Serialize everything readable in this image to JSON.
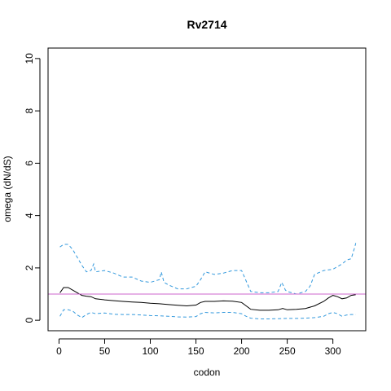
{
  "chart_data": {
    "type": "line",
    "title": "Rv2714",
    "xlabel": "codon",
    "ylabel": "omega (dN/dS)",
    "xlim": [
      -12,
      336
    ],
    "ylim": [
      -0.4,
      10.4
    ],
    "x_ticks": [
      0,
      50,
      100,
      150,
      200,
      250,
      300
    ],
    "y_ticks": [
      0,
      2,
      4,
      6,
      8,
      10
    ],
    "x_tick_labels": [
      "0",
      "50",
      "100",
      "150",
      "200",
      "250",
      "300"
    ],
    "y_tick_labels": [
      "0",
      "2",
      "4",
      "6",
      "8",
      "10"
    ],
    "grid": false,
    "legend": "none",
    "reference_line": {
      "y": 1,
      "color": "#cc66cc"
    },
    "series": [
      {
        "role": "estimate",
        "style": "solid",
        "color": "#000000",
        "x": [
          1,
          5,
          10,
          15,
          20,
          25,
          30,
          35,
          40,
          50,
          60,
          70,
          80,
          90,
          100,
          110,
          120,
          130,
          140,
          150,
          155,
          160,
          170,
          180,
          190,
          200,
          205,
          210,
          220,
          230,
          240,
          245,
          250,
          260,
          270,
          280,
          290,
          295,
          300,
          305,
          310,
          315,
          320,
          325
        ],
        "y": [
          1.05,
          1.25,
          1.25,
          1.15,
          1.05,
          0.95,
          0.92,
          0.9,
          0.82,
          0.78,
          0.75,
          0.72,
          0.7,
          0.68,
          0.65,
          0.63,
          0.6,
          0.57,
          0.55,
          0.58,
          0.68,
          0.72,
          0.72,
          0.74,
          0.73,
          0.68,
          0.55,
          0.42,
          0.38,
          0.38,
          0.4,
          0.45,
          0.4,
          0.42,
          0.45,
          0.55,
          0.72,
          0.85,
          0.95,
          0.9,
          0.82,
          0.85,
          0.95,
          0.98
        ]
      },
      {
        "role": "upper bound",
        "style": "dashed",
        "color": "#3399dd",
        "x": [
          1,
          5,
          10,
          15,
          20,
          25,
          30,
          35,
          38,
          40,
          50,
          60,
          70,
          80,
          90,
          100,
          110,
          112,
          115,
          120,
          130,
          140,
          150,
          155,
          160,
          170,
          180,
          190,
          200,
          205,
          210,
          220,
          230,
          240,
          244,
          248,
          250,
          260,
          270,
          275,
          280,
          290,
          300,
          305,
          310,
          315,
          320,
          324,
          325
        ],
        "y": [
          2.8,
          2.9,
          2.9,
          2.7,
          2.4,
          2.1,
          1.85,
          1.9,
          2.15,
          1.85,
          1.9,
          1.8,
          1.65,
          1.65,
          1.5,
          1.45,
          1.55,
          1.85,
          1.45,
          1.35,
          1.2,
          1.2,
          1.3,
          1.55,
          1.85,
          1.75,
          1.8,
          1.9,
          1.9,
          1.5,
          1.1,
          1.05,
          1.05,
          1.1,
          1.45,
          1.15,
          1.1,
          1.0,
          1.1,
          1.3,
          1.75,
          1.9,
          1.95,
          2.05,
          2.15,
          2.3,
          2.35,
          2.8,
          2.95
        ]
      },
      {
        "role": "lower bound",
        "style": "dashed",
        "color": "#3399dd",
        "x": [
          1,
          5,
          10,
          15,
          20,
          25,
          30,
          35,
          40,
          50,
          60,
          70,
          80,
          90,
          100,
          110,
          120,
          130,
          140,
          150,
          155,
          160,
          170,
          180,
          190,
          200,
          205,
          210,
          220,
          230,
          240,
          250,
          260,
          270,
          280,
          290,
          295,
          300,
          305,
          310,
          315,
          320,
          325
        ],
        "y": [
          0.15,
          0.4,
          0.4,
          0.35,
          0.2,
          0.1,
          0.22,
          0.3,
          0.25,
          0.28,
          0.23,
          0.22,
          0.22,
          0.2,
          0.18,
          0.17,
          0.15,
          0.13,
          0.12,
          0.14,
          0.25,
          0.3,
          0.28,
          0.3,
          0.3,
          0.25,
          0.15,
          0.08,
          0.05,
          0.05,
          0.06,
          0.07,
          0.07,
          0.08,
          0.1,
          0.15,
          0.25,
          0.3,
          0.25,
          0.15,
          0.2,
          0.22,
          0.22
        ]
      }
    ]
  }
}
